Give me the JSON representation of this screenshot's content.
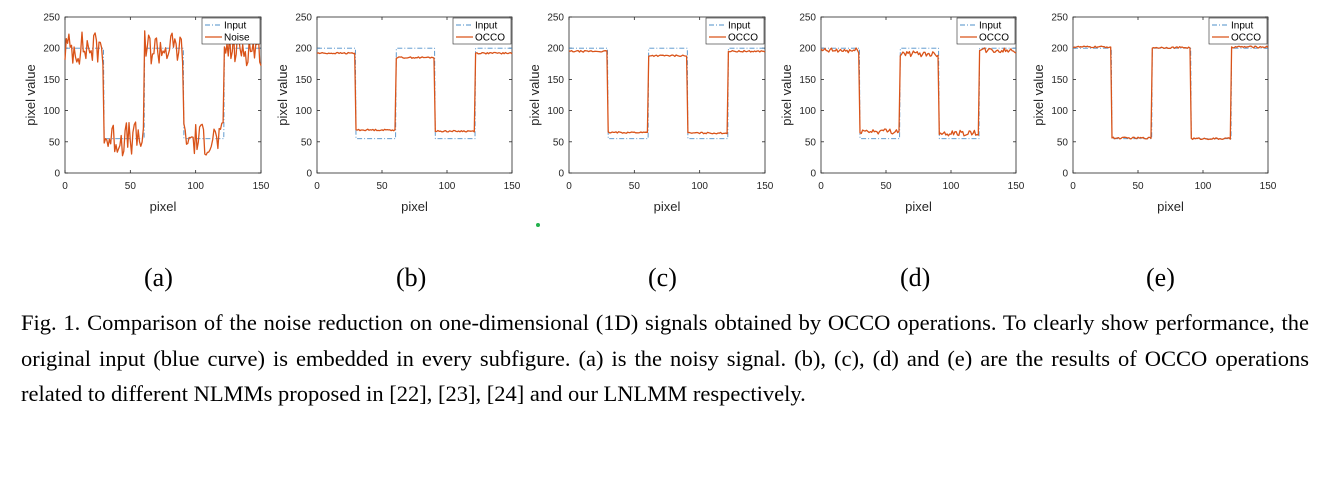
{
  "colors": {
    "input": "#4e8fc9",
    "output": "#d95319",
    "axes": "#262626"
  },
  "chart_data": [
    {
      "type": "line",
      "panel": "a",
      "xlabel": "pixel",
      "ylabel": "pixel value",
      "xlim": [
        0,
        150
      ],
      "ylim": [
        0,
        250
      ],
      "xticks": [
        0,
        50,
        100,
        150
      ],
      "yticks": [
        0,
        50,
        100,
        150,
        200,
        250
      ],
      "legend": "top-right",
      "series": [
        {
          "name": "Input",
          "style": "dashdot",
          "profile": {
            "high": 200,
            "low": 55,
            "edges": [
              30,
              61,
              91,
              122
            ]
          }
        },
        {
          "name": "Noise",
          "style": "solid",
          "profile": {
            "high": 200,
            "low": 55,
            "edges": [
              30,
              61,
              91,
              122
            ],
            "noise": 28,
            "shift": 0
          }
        }
      ]
    },
    {
      "type": "line",
      "panel": "b",
      "xlabel": "pixel",
      "ylabel": "pixel value",
      "xlim": [
        0,
        150
      ],
      "ylim": [
        0,
        250
      ],
      "xticks": [
        0,
        50,
        100,
        150
      ],
      "yticks": [
        0,
        50,
        100,
        150,
        200,
        250
      ],
      "legend": "top-right",
      "series": [
        {
          "name": "Input",
          "style": "dashdot",
          "profile": {
            "high": 200,
            "low": 55,
            "edges": [
              30,
              61,
              91,
              122
            ]
          }
        },
        {
          "name": "OCCO",
          "style": "solid",
          "profile": {
            "high": 192,
            "high2": 185,
            "low": 69,
            "low2": 67,
            "edges": [
              30,
              61,
              91,
              122
            ],
            "noise": 1.2,
            "shift": 0
          }
        }
      ]
    },
    {
      "type": "line",
      "panel": "c",
      "xlabel": "pixel",
      "ylabel": "pixel value",
      "xlim": [
        0,
        150
      ],
      "ylim": [
        0,
        250
      ],
      "xticks": [
        0,
        50,
        100,
        150
      ],
      "yticks": [
        0,
        50,
        100,
        150,
        200,
        250
      ],
      "legend": "top-right",
      "series": [
        {
          "name": "Input",
          "style": "dashdot",
          "profile": {
            "high": 200,
            "low": 55,
            "edges": [
              30,
              61,
              91,
              122
            ]
          }
        },
        {
          "name": "OCCO",
          "style": "solid",
          "profile": {
            "high": 195,
            "high2": 188,
            "low": 65,
            "low2": 64,
            "edges": [
              30,
              61,
              91,
              122
            ],
            "noise": 1.2,
            "shift": 0
          }
        }
      ]
    },
    {
      "type": "line",
      "panel": "d",
      "xlabel": "pixel",
      "ylabel": "pixel value",
      "xlim": [
        0,
        150
      ],
      "ylim": [
        0,
        250
      ],
      "xticks": [
        0,
        50,
        100,
        150
      ],
      "yticks": [
        0,
        50,
        100,
        150,
        200,
        250
      ],
      "legend": "top-right",
      "series": [
        {
          "name": "Input",
          "style": "dashdot",
          "profile": {
            "high": 200,
            "low": 55,
            "edges": [
              30,
              61,
              91,
              122
            ]
          }
        },
        {
          "name": "OCCO",
          "style": "solid",
          "profile": {
            "high": 196,
            "high2": 191,
            "low": 67,
            "low2": 64,
            "edges": [
              30,
              61,
              91,
              122
            ],
            "noise": 4.5,
            "shift": 0
          }
        }
      ]
    },
    {
      "type": "line",
      "panel": "e",
      "xlabel": "pixel",
      "ylabel": "pixel value",
      "xlim": [
        0,
        150
      ],
      "ylim": [
        0,
        250
      ],
      "xticks": [
        0,
        50,
        100,
        150
      ],
      "yticks": [
        0,
        50,
        100,
        150,
        200,
        250
      ],
      "legend": "top-right",
      "series": [
        {
          "name": "Input",
          "style": "dashdot",
          "profile": {
            "high": 200,
            "low": 55,
            "edges": [
              30,
              61,
              91,
              122
            ]
          }
        },
        {
          "name": "OCCO",
          "style": "solid",
          "profile": {
            "high": 202,
            "high2": 201,
            "low": 56,
            "low2": 55,
            "edges": [
              30,
              61,
              91,
              122
            ],
            "noise": 1.4,
            "shift": 0
          }
        }
      ]
    }
  ],
  "subfigure_labels": [
    "(a)",
    "(b)",
    "(c)",
    "(d)",
    "(e)"
  ],
  "caption": "Fig. 1. Comparison of the noise reduction on one-dimensional (1D) signals obtained by OCCO operations. To clearly show performance, the original input (blue curve) is embedded in every subfigure. (a) is the noisy signal. (b), (c), (d) and (e) are the results of OCCO operations related to different NLMMs proposed in [22], [23], [24] and our LNLMM respectively."
}
